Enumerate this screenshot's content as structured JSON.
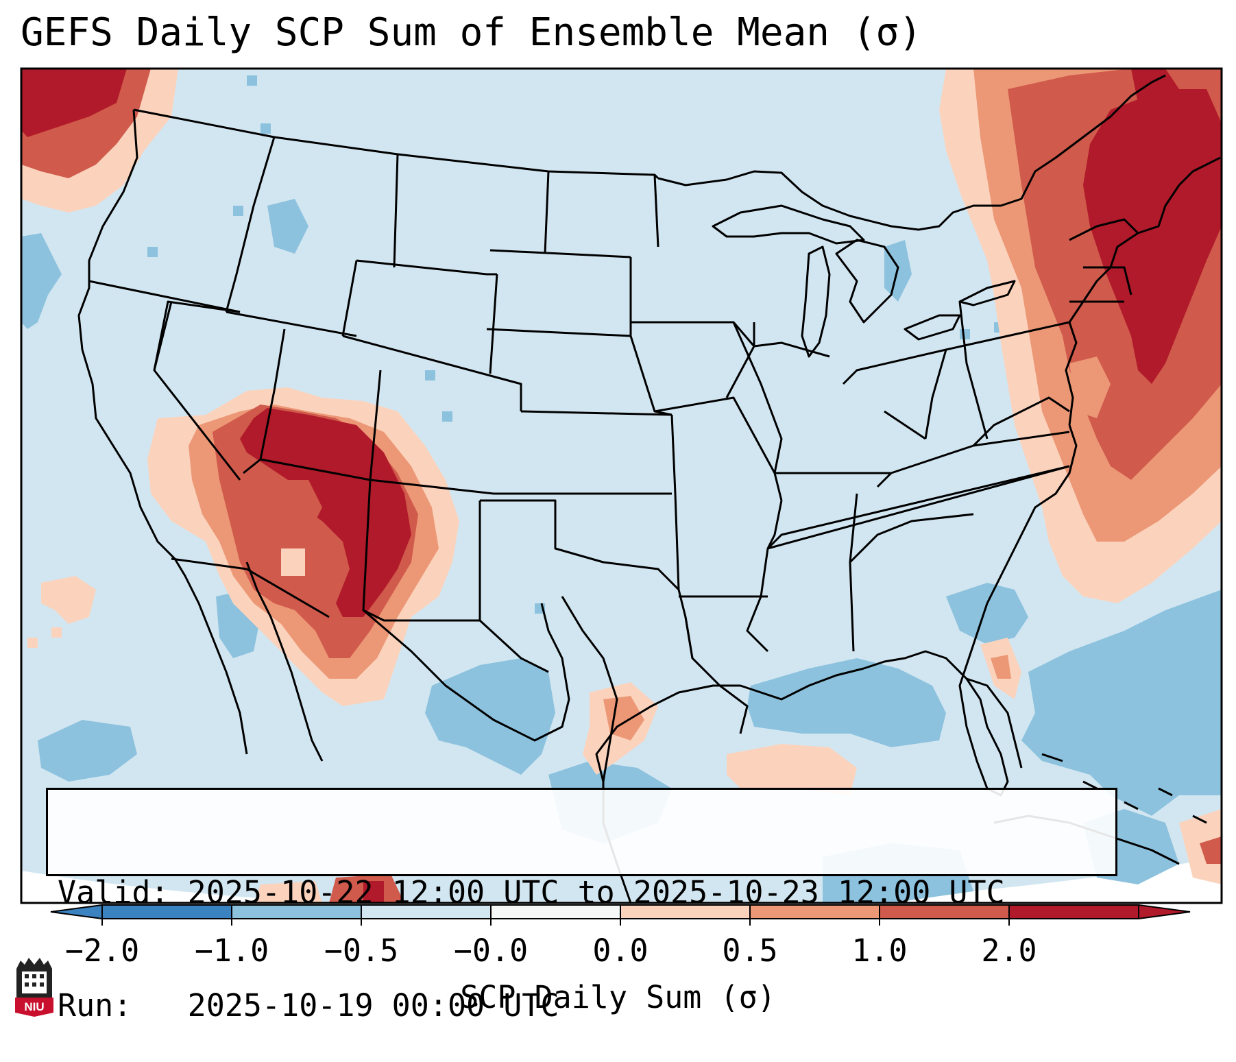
{
  "title": "GEFS Daily SCP Sum of Ensemble Mean (σ)",
  "info": {
    "valid": "Valid: 2025-10-22 12:00 UTC to 2025-10-23 12:00 UTC",
    "run": "Run:   2025-10-19 00:00 UTC"
  },
  "colorbar": {
    "label": "SCP Daily Sum (σ)",
    "ticks": [
      "−2.0",
      "−1.0",
      "−0.5",
      "−0.0",
      "0.0",
      "0.5",
      "1.0",
      "2.0"
    ],
    "colors": [
      "#3a82c0",
      "#8cc2de",
      "#d2e6f1",
      "#f6f7f7",
      "#fbd3bd",
      "#ec9876",
      "#d05a4b",
      "#b11a2a"
    ],
    "extend": "both"
  },
  "map": {
    "region": "Contiguous United States",
    "palette": {
      "very_low": "#8cc2de",
      "low": "#d2e6f1",
      "slightly_above": "#fbd3bd",
      "above": "#ec9876",
      "high": "#d05a4b",
      "very_high": "#b11a2a"
    }
  },
  "logo": {
    "text": "NIU"
  }
}
